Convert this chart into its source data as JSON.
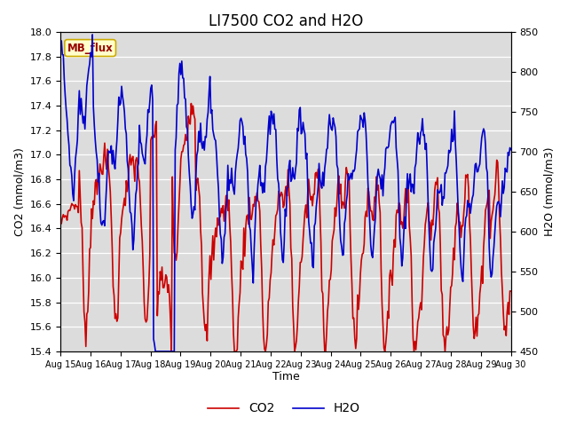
{
  "title": "LI7500 CO2 and H2O",
  "xlabel": "Time",
  "ylabel_left": "CO2 (mmol/m3)",
  "ylabel_right": "H2O (mmol/m3)",
  "ylim_left": [
    15.4,
    18.0
  ],
  "ylim_right": [
    450,
    850
  ],
  "yticks_left": [
    15.4,
    15.6,
    15.8,
    16.0,
    16.2,
    16.4,
    16.6,
    16.8,
    17.0,
    17.2,
    17.4,
    17.6,
    17.8,
    18.0
  ],
  "yticks_right": [
    450,
    500,
    550,
    600,
    650,
    700,
    750,
    800,
    850
  ],
  "xtick_labels": [
    "Aug 15",
    "Aug 16",
    "Aug 17",
    "Aug 18",
    "Aug 19",
    "Aug 20",
    "Aug 21",
    "Aug 22",
    "Aug 23",
    "Aug 24",
    "Aug 25",
    "Aug 26",
    "Aug 27",
    "Aug 28",
    "Aug 29",
    "Aug 30"
  ],
  "color_co2": "#cc0000",
  "color_h2o": "#0000cc",
  "legend_label_co2": "CO2",
  "legend_label_h2o": "H2O",
  "annotation_text": "MB_flux",
  "background_color": "#dcdcdc",
  "grid_color": "#ffffff",
  "title_fontsize": 12,
  "axis_fontsize": 9,
  "tick_fontsize": 8,
  "linewidth": 1.2
}
